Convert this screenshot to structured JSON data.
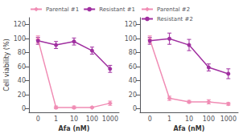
{
  "chart_data": [
    {
      "type": "line",
      "xlabel": "Afa (nM)",
      "ylabel": "Cell viability (%)",
      "categories": [
        "0",
        "1",
        "10",
        "100",
        "1000"
      ],
      "series": [
        {
          "name": "Parental #1",
          "color": "#f08cb4",
          "marker": "diamond",
          "values": [
            99,
            2,
            2,
            2,
            8
          ],
          "errors": [
            5,
            2,
            2,
            1,
            3
          ]
        },
        {
          "name": "Resistant #1",
          "color": "#a030a0",
          "marker": "circle",
          "values": [
            97,
            91,
            96,
            83,
            57
          ],
          "errors": [
            5,
            5,
            5,
            5,
            5
          ]
        }
      ],
      "ylim": [
        -5,
        130
      ],
      "yticks": [
        0,
        20,
        40,
        60,
        80,
        100,
        120
      ],
      "legend": "top",
      "grid": false
    },
    {
      "type": "line",
      "xlabel": "Afa (nM)",
      "categories": [
        "0",
        "1",
        "10",
        "100",
        "1000"
      ],
      "series": [
        {
          "name": "Parental #2",
          "color": "#f08cb4",
          "marker": "diamond",
          "values": [
            99,
            15,
            10,
            10,
            7
          ],
          "errors": [
            5,
            3,
            2,
            3,
            2
          ]
        },
        {
          "name": "Resistant #2",
          "color": "#a030a0",
          "marker": "circle",
          "values": [
            97,
            100,
            91,
            59,
            50
          ],
          "errors": [
            5,
            8,
            8,
            5,
            7
          ]
        }
      ],
      "ylim": [
        -5,
        130
      ],
      "yticks": [
        0,
        20,
        40,
        60,
        80,
        100,
        120
      ],
      "legend": "top",
      "grid": false
    }
  ]
}
